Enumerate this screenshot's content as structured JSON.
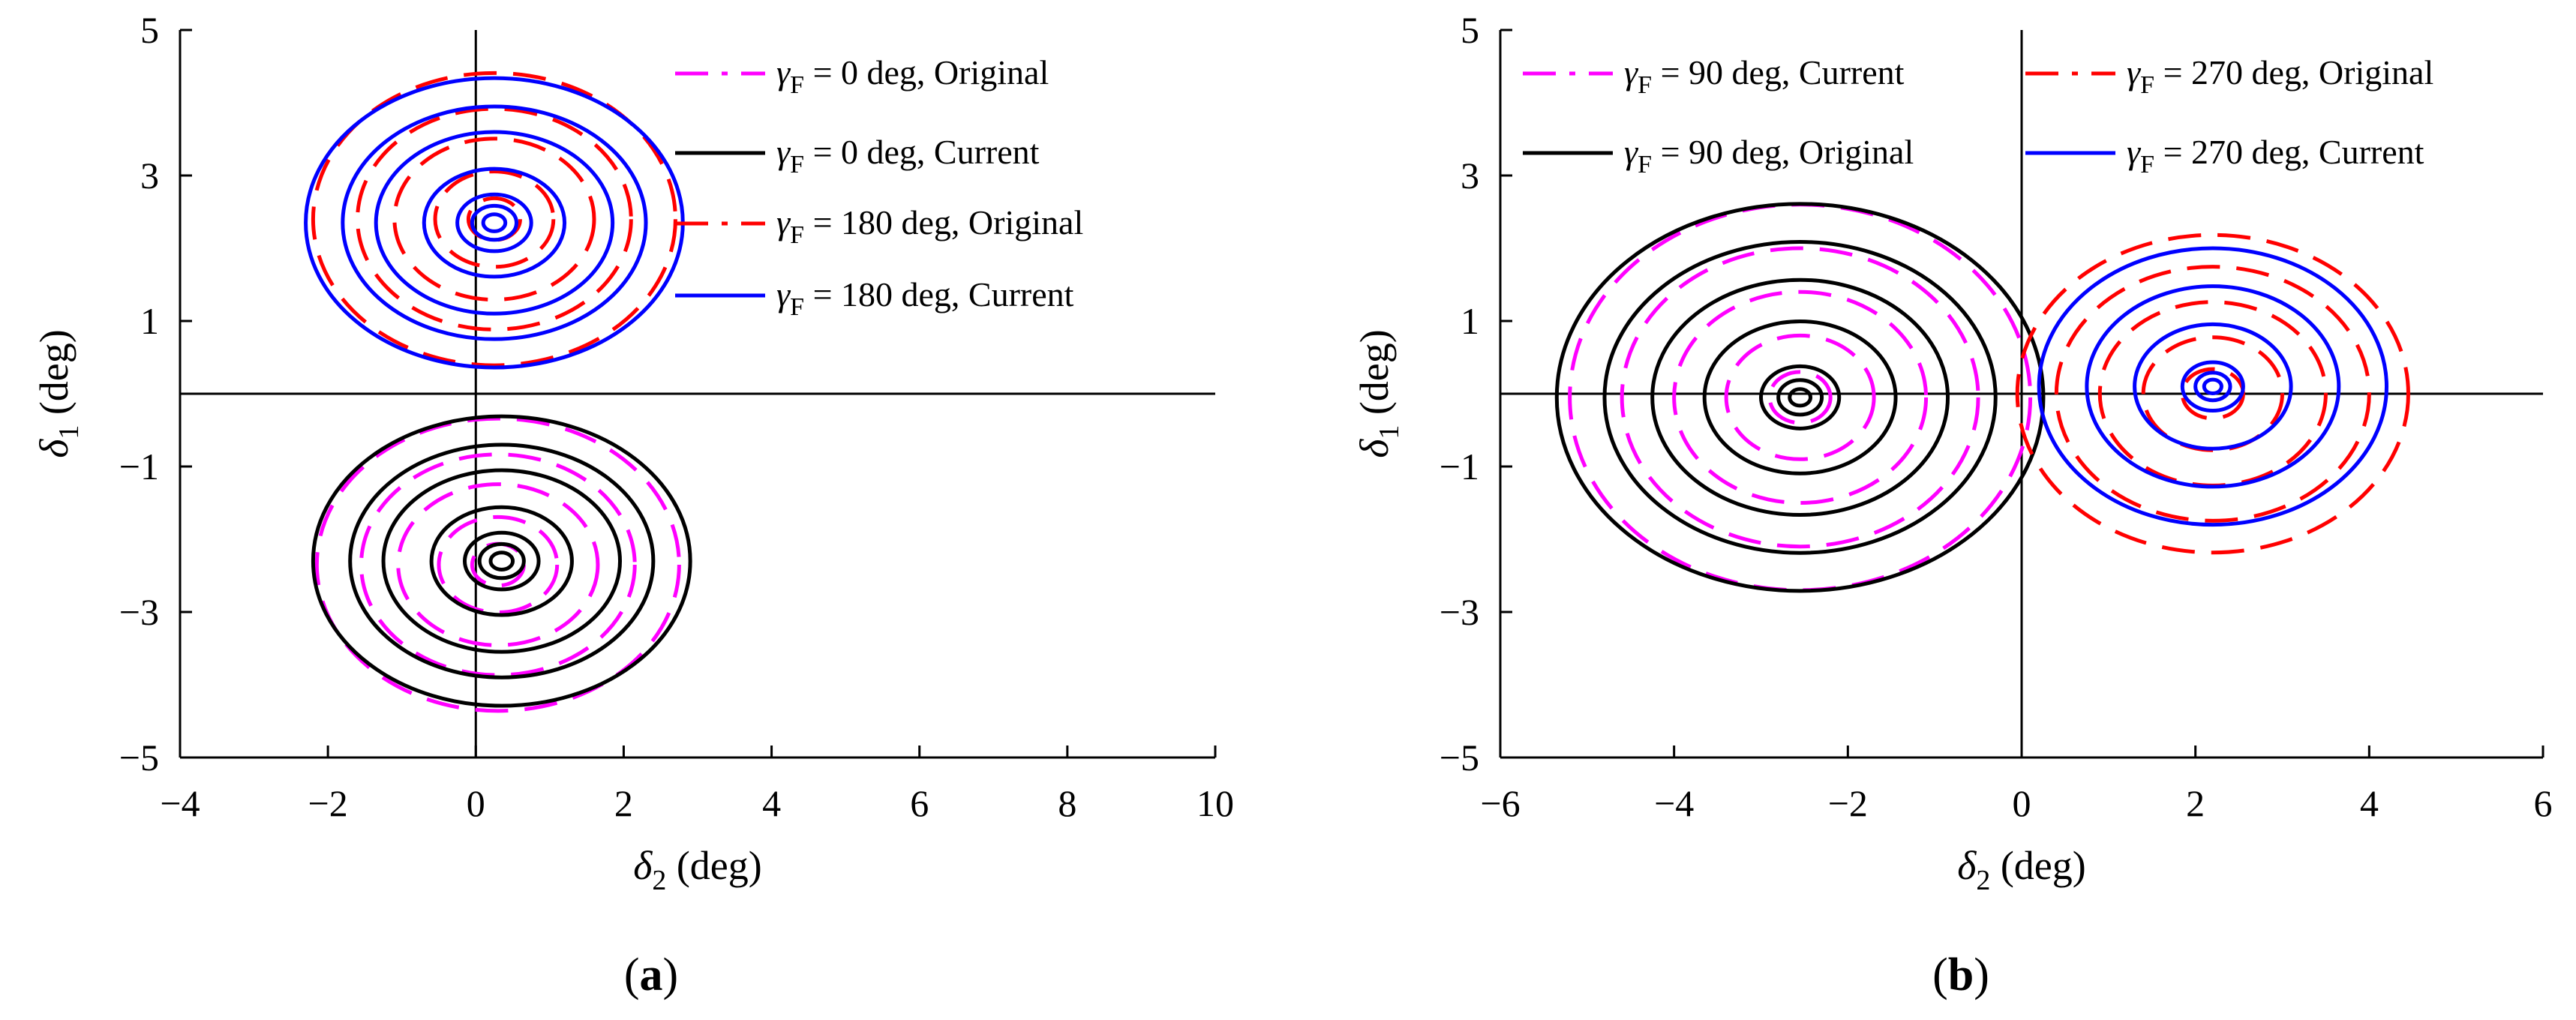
{
  "chart_data": [
    {
      "panel_label": "(a)",
      "type": "line",
      "xlabel": "δ2 (deg)",
      "xlabel_main": "δ",
      "xlabel_sub": "2",
      "xlabel_unit": "(deg)",
      "ylabel": "δ1 (deg)",
      "ylabel_main": "δ",
      "ylabel_sub": "1",
      "ylabel_unit": "(deg)",
      "xlim": [
        -4,
        10
      ],
      "ylim": [
        -5,
        5
      ],
      "xticks": [
        "−4",
        "−2",
        "0",
        "2",
        "4",
        "6",
        "8",
        "10"
      ],
      "xtick_values": [
        -4,
        -2,
        0,
        2,
        4,
        6,
        8,
        10
      ],
      "yticks": [
        "5",
        "3",
        "1",
        "−1",
        "−3",
        "−5"
      ],
      "ytick_values": [
        5,
        3,
        1,
        -1,
        -3,
        -5
      ],
      "legend_position": "top-right",
      "series": [
        {
          "name": "γF = 0 deg, Original",
          "legend_main": "γ",
          "legend_sub": "F",
          "legend_rest": " = 0 deg, Original",
          "color": "#ff00ff",
          "dash": "dashdot",
          "plot_dash": "dashed",
          "center": [
            0.3,
            -2.35
          ],
          "radii": [
            0.35,
            0.8,
            1.35,
            1.85,
            2.45
          ],
          "ry_scale": 0.82
        },
        {
          "name": "γF = 0 deg, Current",
          "legend_main": "γ",
          "legend_sub": "F",
          "legend_rest": " = 0 deg, Current",
          "color": "#000000",
          "dash": "solid",
          "plot_dash": "solid",
          "center": [
            0.35,
            -2.3
          ],
          "radii": [
            0.15,
            0.3,
            0.5,
            0.95,
            1.6,
            2.05,
            2.55
          ],
          "ry_scale": 0.78
        },
        {
          "name": "γF = 180 deg, Original",
          "legend_main": "γ",
          "legend_sub": "F",
          "legend_rest": " = 180 deg, Original",
          "color": "#ff0000",
          "dash": "dashdot",
          "plot_dash": "dashed",
          "center": [
            0.25,
            2.4
          ],
          "radii": [
            0.35,
            0.8,
            1.35,
            1.85,
            2.45
          ],
          "ry_scale": 0.82
        },
        {
          "name": "γF = 180 deg, Current",
          "legend_main": "γ",
          "legend_sub": "F",
          "legend_rest": " = 180 deg, Current",
          "color": "#0000ff",
          "dash": "solid",
          "plot_dash": "solid",
          "center": [
            0.25,
            2.35
          ],
          "radii": [
            0.15,
            0.3,
            0.5,
            0.95,
            1.6,
            2.05,
            2.55
          ],
          "ry_scale": 0.78
        }
      ]
    },
    {
      "panel_label": "(b)",
      "type": "line",
      "xlabel": "δ2 (deg)",
      "xlabel_main": "δ",
      "xlabel_sub": "2",
      "xlabel_unit": "(deg)",
      "ylabel": "δ1 (deg)",
      "ylabel_main": "δ",
      "ylabel_sub": "1",
      "ylabel_unit": "(deg)",
      "xlim": [
        -6,
        6
      ],
      "ylim": [
        -5,
        5
      ],
      "xticks": [
        "−6",
        "−4",
        "−2",
        "0",
        "2",
        "4",
        "6"
      ],
      "xtick_values": [
        -6,
        -4,
        -2,
        0,
        2,
        4,
        6
      ],
      "yticks": [
        "5",
        "3",
        "1",
        "−1",
        "−3",
        "−5"
      ],
      "ytick_values": [
        5,
        3,
        1,
        -1,
        -3,
        -5
      ],
      "legend_position": "top",
      "series": [
        {
          "name": "γF = 90 deg, Current",
          "legend_main": "γ",
          "legend_sub": "F",
          "legend_rest": " = 90 deg, Current",
          "color": "#ff00ff",
          "dash": "dashdot",
          "plot_dash": "dashed",
          "center": [
            -2.55,
            -0.05
          ],
          "radii": [
            0.35,
            0.85,
            1.45,
            2.05,
            2.65
          ],
          "ry_scale": 1.0
        },
        {
          "name": "γF = 90 deg, Original",
          "legend_main": "γ",
          "legend_sub": "F",
          "legend_rest": " = 90 deg, Original",
          "color": "#000000",
          "dash": "solid",
          "plot_dash": "solid",
          "center": [
            -2.55,
            -0.05
          ],
          "radii": [
            0.12,
            0.25,
            0.45,
            1.1,
            1.7,
            2.25,
            2.8
          ],
          "ry_scale": 0.95
        },
        {
          "name": "γF = 270 deg, Original",
          "legend_main": "γ",
          "legend_sub": "F",
          "legend_rest": " = 270 deg, Original",
          "color": "#ff0000",
          "dash": "dashdot",
          "plot_dash": "dashed",
          "center": [
            2.2,
            0.0
          ],
          "radii": [
            0.35,
            0.8,
            1.3,
            1.8,
            2.25
          ],
          "ry_scale": 0.97
        },
        {
          "name": "γF = 270 deg, Current",
          "legend_main": "γ",
          "legend_sub": "F",
          "legend_rest": " = 270 deg, Current",
          "color": "#0000ff",
          "dash": "solid",
          "plot_dash": "solid",
          "center": [
            2.2,
            0.1
          ],
          "radii": [
            0.1,
            0.2,
            0.35,
            0.9,
            1.45,
            2.0
          ],
          "ry_scale": 0.95
        }
      ]
    }
  ]
}
